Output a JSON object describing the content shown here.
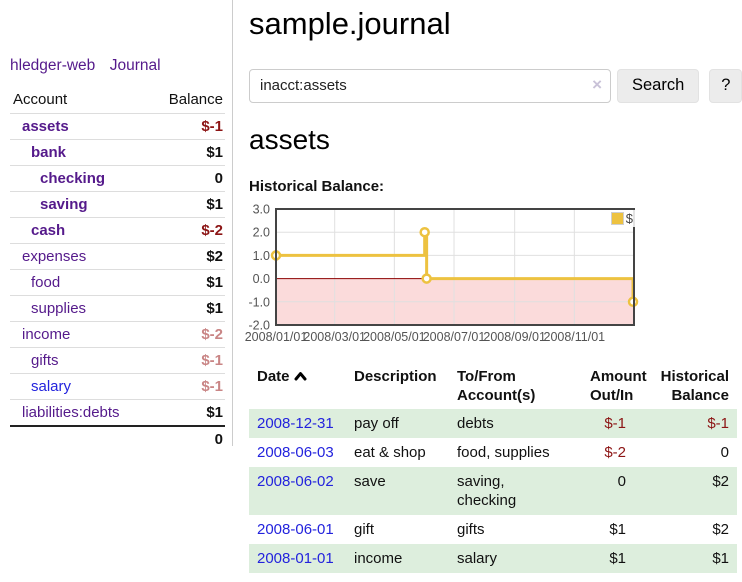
{
  "colors": {
    "link_purple": "#551a8b",
    "link_blue": "#2323dd",
    "neg_strong": "#8c1414",
    "neg_soft": "#c98585",
    "row_green": "#ddeedd",
    "chart_line": "#edc240",
    "chart_neg_bg": "#fbdbdb",
    "chart_zero": "#8b0000",
    "chart_grid": "#e0e0e0",
    "chart_border": "#444444",
    "axis_label": "#545454",
    "button_bg": "#ececec",
    "input_border": "#cccccc",
    "divider": "#cccccc",
    "row_border": "#dddddd"
  },
  "app": {
    "title": "hledger-web"
  },
  "sidebar": {
    "journal_link": "Journal",
    "accounts": {
      "headers": {
        "account": "Account",
        "balance": "Balance"
      },
      "rows": [
        {
          "name": "assets",
          "balance": "$-1"
        },
        {
          "name": "bank",
          "balance": "$1"
        },
        {
          "name": "checking",
          "balance": "0"
        },
        {
          "name": "saving",
          "balance": "$1"
        },
        {
          "name": "cash",
          "balance": "$-2"
        },
        {
          "name": "expenses",
          "balance": "$2"
        },
        {
          "name": "food",
          "balance": "$1"
        },
        {
          "name": "supplies",
          "balance": "$1"
        },
        {
          "name": "income",
          "balance": "$-2"
        },
        {
          "name": "gifts",
          "balance": "$-1"
        },
        {
          "name": "salary",
          "balance": "$-1"
        },
        {
          "name": "liabilities:debts",
          "balance": "$1"
        }
      ],
      "total": "0"
    }
  },
  "main": {
    "title": "sample.journal",
    "search": {
      "value": "inacct:assets",
      "clear_icon": "×",
      "search_button": "Search",
      "help_button": "?"
    },
    "account_heading": "assets",
    "chart_label": "Historical Balance:"
  },
  "chart_data": {
    "type": "line",
    "title": "Historical Balance",
    "step": true,
    "x_range": [
      "2008-01-01",
      "2009-01-01"
    ],
    "ylim": [
      -2,
      3
    ],
    "y_ticks": [
      "3.0",
      "2.0",
      "1.0",
      "0.0",
      "-1.0",
      "-2.0"
    ],
    "x_ticks": [
      "2008/01/01",
      "2008/03/01",
      "2008/05/01",
      "2008/07/01",
      "2008/09/01",
      "2008/11/01"
    ],
    "legend": "$",
    "legend_position": "top-right",
    "grid": true,
    "series": [
      {
        "name": "$",
        "color": "#edc240",
        "points": [
          [
            "2008-01-01",
            1
          ],
          [
            "2008-06-01",
            2
          ],
          [
            "2008-06-03",
            0
          ],
          [
            "2008-12-31",
            -1
          ]
        ]
      }
    ],
    "grid_color": "#e0e0e0",
    "zero_line_color": "#8b0000",
    "negative_region_color": "#fbdbdb",
    "border_color": "#444444"
  },
  "register": {
    "headers": {
      "date": "Date",
      "description": "Description",
      "tofrom_line1": "To/From",
      "tofrom_line2": "Account(s)",
      "amount_line1": "Amount",
      "amount_line2": "Out/In",
      "balance_line1": "Historical",
      "balance_line2": "Balance"
    },
    "rows": [
      {
        "date": "2008-12-31",
        "description": "pay off",
        "accounts": "debts",
        "amount": "$-1",
        "balance": "$-1"
      },
      {
        "date": "2008-06-03",
        "description": "eat & shop",
        "accounts": "food, supplies",
        "amount": "$-2",
        "balance": "0"
      },
      {
        "date": "2008-06-02",
        "description": "save",
        "accounts": "saving, checking",
        "amount": "0",
        "balance": "$2"
      },
      {
        "date": "2008-06-01",
        "description": "gift",
        "accounts": "gifts",
        "amount": "$1",
        "balance": "$2"
      },
      {
        "date": "2008-01-01",
        "description": "income",
        "accounts": "salary",
        "amount": "$1",
        "balance": "$1"
      }
    ]
  }
}
